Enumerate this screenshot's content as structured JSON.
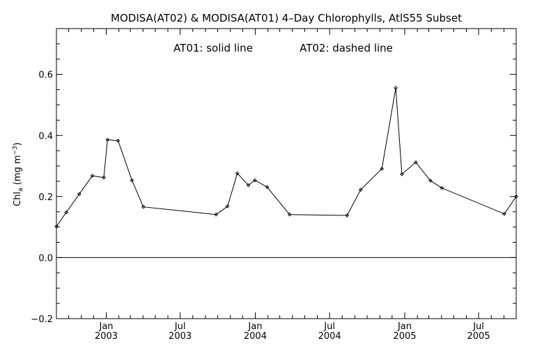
{
  "chart_data": {
    "type": "line",
    "title": "MODISA(AT02) & MODISA(AT01) 4–Day Chlorophylls, AtlS55 Subset",
    "annotation": {
      "solid": "AT01: solid line",
      "dashed": "AT02: dashed line"
    },
    "ylabel": {
      "main": "Chl",
      "sub": "a",
      "unit_open": " (mg m",
      "sup": "−3",
      "unit_close": ")"
    },
    "xlim": [
      "2002-09-01",
      "2005-10-01"
    ],
    "ylim": [
      -0.2,
      0.75
    ],
    "yticks": [
      -0.2,
      0.0,
      0.2,
      0.4,
      0.6
    ],
    "ytick_labels": [
      "−0.2",
      "0.0",
      "0.2",
      "0.4",
      "0.6"
    ],
    "xticks": [
      {
        "date": "2003-01-01",
        "month": "Jan",
        "year": "2003"
      },
      {
        "date": "2003-07-01",
        "month": "Jul",
        "year": "2003"
      },
      {
        "date": "2004-01-01",
        "month": "Jan",
        "year": "2004"
      },
      {
        "date": "2004-07-01",
        "month": "Jul",
        "year": "2004"
      },
      {
        "date": "2005-01-01",
        "month": "Jan",
        "year": "2005"
      },
      {
        "date": "2005-07-01",
        "month": "Jul",
        "year": "2005"
      }
    ],
    "zero_line": 0.0,
    "series": [
      {
        "line_style": "solid",
        "points": [
          {
            "x": "2002-09-01",
            "y": 0.102
          },
          {
            "x": "2002-09-25",
            "y": 0.148
          },
          {
            "x": "2002-10-27",
            "y": 0.208
          },
          {
            "x": "2002-11-28",
            "y": 0.268
          },
          {
            "x": "2002-12-26",
            "y": 0.262
          },
          {
            "x": "2003-01-04",
            "y": 0.386
          },
          {
            "x": "2003-01-30",
            "y": 0.383
          },
          {
            "x": "2003-03-05",
            "y": 0.253
          },
          {
            "x": "2003-04-02",
            "y": 0.166
          },
          {
            "x": "2003-09-27",
            "y": 0.141
          },
          {
            "x": "2003-10-25",
            "y": 0.168
          },
          {
            "x": "2003-11-18",
            "y": 0.276
          },
          {
            "x": "2003-12-15",
            "y": 0.237
          },
          {
            "x": "2003-12-31",
            "y": 0.253
          },
          {
            "x": "2004-01-30",
            "y": 0.231
          },
          {
            "x": "2004-03-25",
            "y": 0.141
          },
          {
            "x": "2004-08-13",
            "y": 0.138
          },
          {
            "x": "2004-09-15",
            "y": 0.222
          },
          {
            "x": "2004-11-06",
            "y": 0.291
          },
          {
            "x": "2004-12-10",
            "y": 0.556
          },
          {
            "x": "2004-12-25",
            "y": 0.273
          },
          {
            "x": "2005-01-28",
            "y": 0.312
          },
          {
            "x": "2005-03-05",
            "y": 0.252
          },
          {
            "x": "2005-04-02",
            "y": 0.228
          },
          {
            "x": "2005-09-02",
            "y": 0.143
          },
          {
            "x": "2005-10-01",
            "y": 0.2
          }
        ]
      }
    ]
  }
}
